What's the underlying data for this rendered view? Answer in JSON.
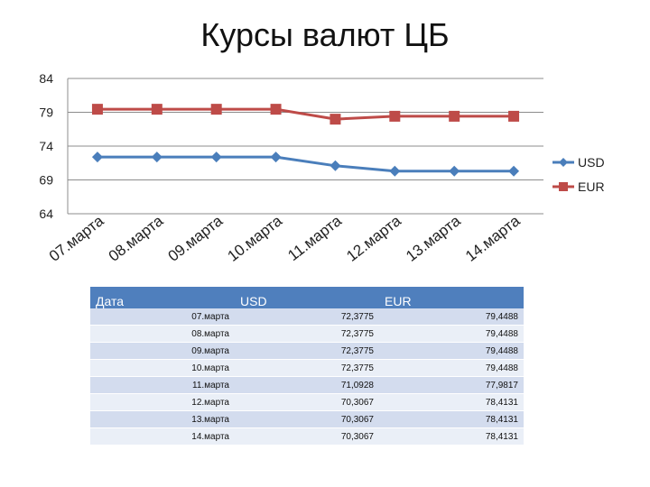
{
  "slide": {
    "title": "Курсы валют ЦБ"
  },
  "chart_data": {
    "type": "line",
    "title": "",
    "categories": [
      "07.марта",
      "08.марта",
      "09.марта",
      "10.марта",
      "11.марта",
      "12.марта",
      "13.марта",
      "14.марта"
    ],
    "series": [
      {
        "name": "USD",
        "values": [
          72.3775,
          72.3775,
          72.3775,
          72.3775,
          71.0928,
          70.3067,
          70.3067,
          70.3067
        ],
        "color": "#4a7ebb",
        "marker": "diamond"
      },
      {
        "name": "EUR",
        "values": [
          79.4488,
          79.4488,
          79.4488,
          79.4488,
          77.9817,
          78.4131,
          78.4131,
          78.4131
        ],
        "color": "#be4b48",
        "marker": "square"
      }
    ],
    "ylim": [
      64,
      84
    ],
    "yticks": [
      64,
      69,
      74,
      79,
      84
    ],
    "grid": true,
    "legend": "right",
    "xlabel": "",
    "ylabel": ""
  },
  "table": {
    "headers": [
      "Дата",
      "USD",
      "EUR"
    ],
    "rows": [
      [
        "07.марта",
        "72,3775",
        "79,4488"
      ],
      [
        "08.марта",
        "72,3775",
        "79,4488"
      ],
      [
        "09.марта",
        "72,3775",
        "79,4488"
      ],
      [
        "10.марта",
        "72,3775",
        "79,4488"
      ],
      [
        "11.марта",
        "71,0928",
        "77,9817"
      ],
      [
        "12.марта",
        "70,3067",
        "78,4131"
      ],
      [
        "13.марта",
        "70,3067",
        "78,4131"
      ],
      [
        "14.марта",
        "70,3067",
        "78,4131"
      ]
    ]
  }
}
